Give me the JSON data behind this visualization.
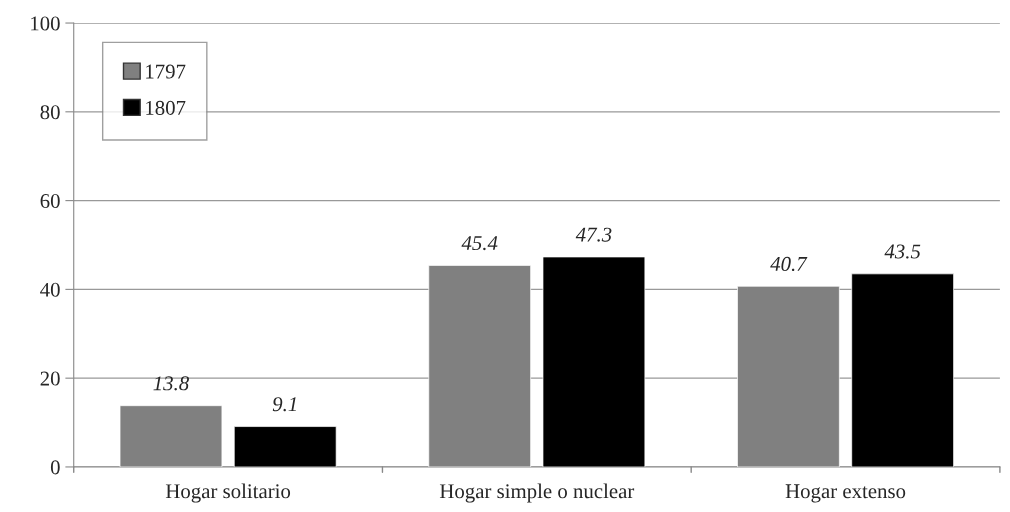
{
  "chart_data": {
    "type": "bar",
    "categories": [
      "Hogar solitario",
      "Hogar simple o nuclear",
      "Hogar extenso"
    ],
    "series": [
      {
        "name": "1797",
        "color": "#808080",
        "values": [
          13.8,
          45.4,
          40.7
        ]
      },
      {
        "name": "1807",
        "color": "#000000",
        "values": [
          9.1,
          47.3,
          43.5
        ]
      }
    ],
    "ylim": [
      0,
      100
    ],
    "yticks": [
      0,
      20,
      40,
      60,
      80,
      100
    ],
    "grid": "y",
    "legend": "top left",
    "data_labels": true
  }
}
